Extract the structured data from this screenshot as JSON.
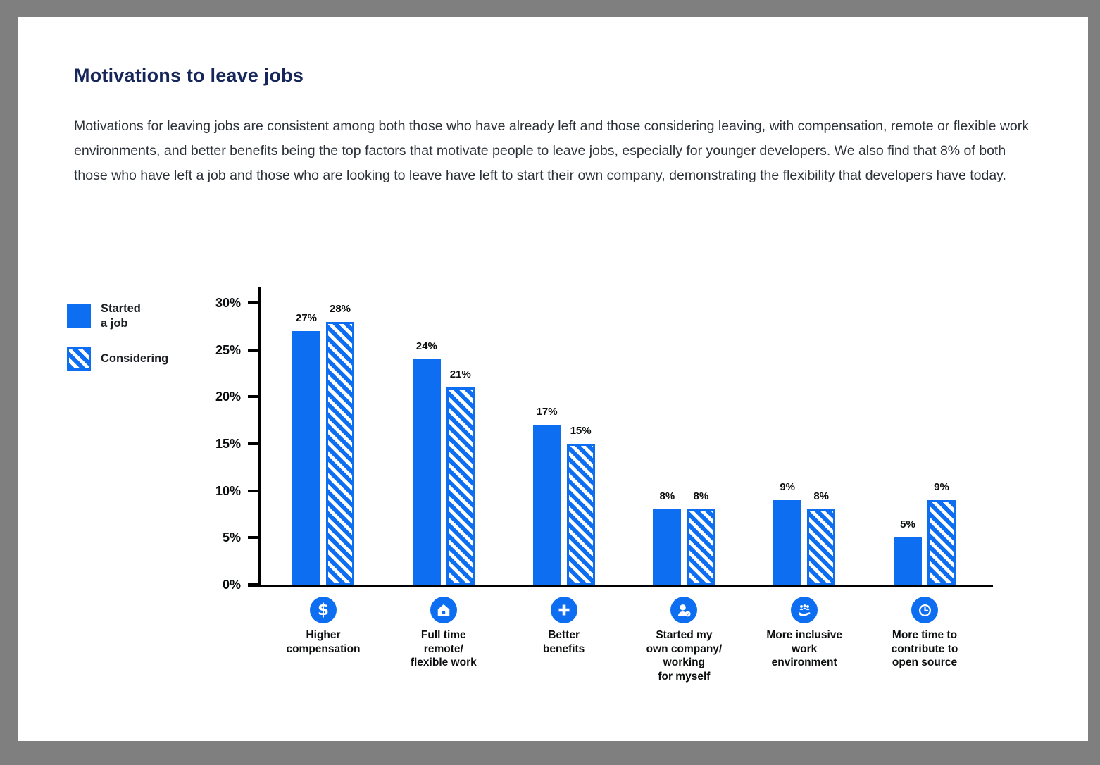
{
  "page": {
    "frame_color": "#7f7f7f",
    "background": "#ffffff",
    "title": "Motivations to leave jobs",
    "paragraph": "Motivations for leaving jobs are consistent among both those who have already left and those considering leaving, with compensation, remote or flexible work environments, and better benefits being the top factors that motivate people to leave jobs, especially for younger developers. We also find that 8% of both those who have left a job and those who are looking to leave have left to start their own company, demonstrating the flexibility that developers have today."
  },
  "legend": {
    "items": [
      {
        "label": "Started\na job",
        "swatch": "solid"
      },
      {
        "label": "Considering",
        "swatch": "hatched"
      }
    ]
  },
  "chart_data": {
    "type": "bar",
    "title": "Motivations to leave jobs",
    "categories": [
      "Higher\ncompensation",
      "Full time\nremote/\nflexible work",
      "Better\nbenefits",
      "Started my\nown company/\nworking\nfor myself",
      "More inclusive\nwork\nenvironment",
      "More time to\ncontribute to\nopen source"
    ],
    "category_icons": [
      "dollar-icon",
      "home-icon",
      "plus-icon",
      "person-check-icon",
      "people-in-hand-icon",
      "clock-icon"
    ],
    "series": [
      {
        "name": "Started a job",
        "style": "solid",
        "values": [
          27,
          24,
          17,
          8,
          9,
          5
        ]
      },
      {
        "name": "Considering",
        "style": "hatched",
        "values": [
          28,
          21,
          15,
          8,
          8,
          9
        ]
      }
    ],
    "value_labels": [
      [
        "27%",
        "24%",
        "17%",
        "8%",
        "9%",
        "5%"
      ],
      [
        "28%",
        "21%",
        "15%",
        "8%",
        "8%",
        "9%"
      ]
    ],
    "xlabel": "",
    "ylabel": "",
    "ylim": [
      0,
      30
    ],
    "yticks": [
      "0%",
      "5%",
      "10%",
      "15%",
      "20%",
      "25%",
      "30%"
    ],
    "grid": false,
    "legend_position": "upper-left",
    "colors": {
      "bar_blue": "#0d6ef2",
      "axis": "#000000",
      "title_navy": "#16265a"
    }
  }
}
